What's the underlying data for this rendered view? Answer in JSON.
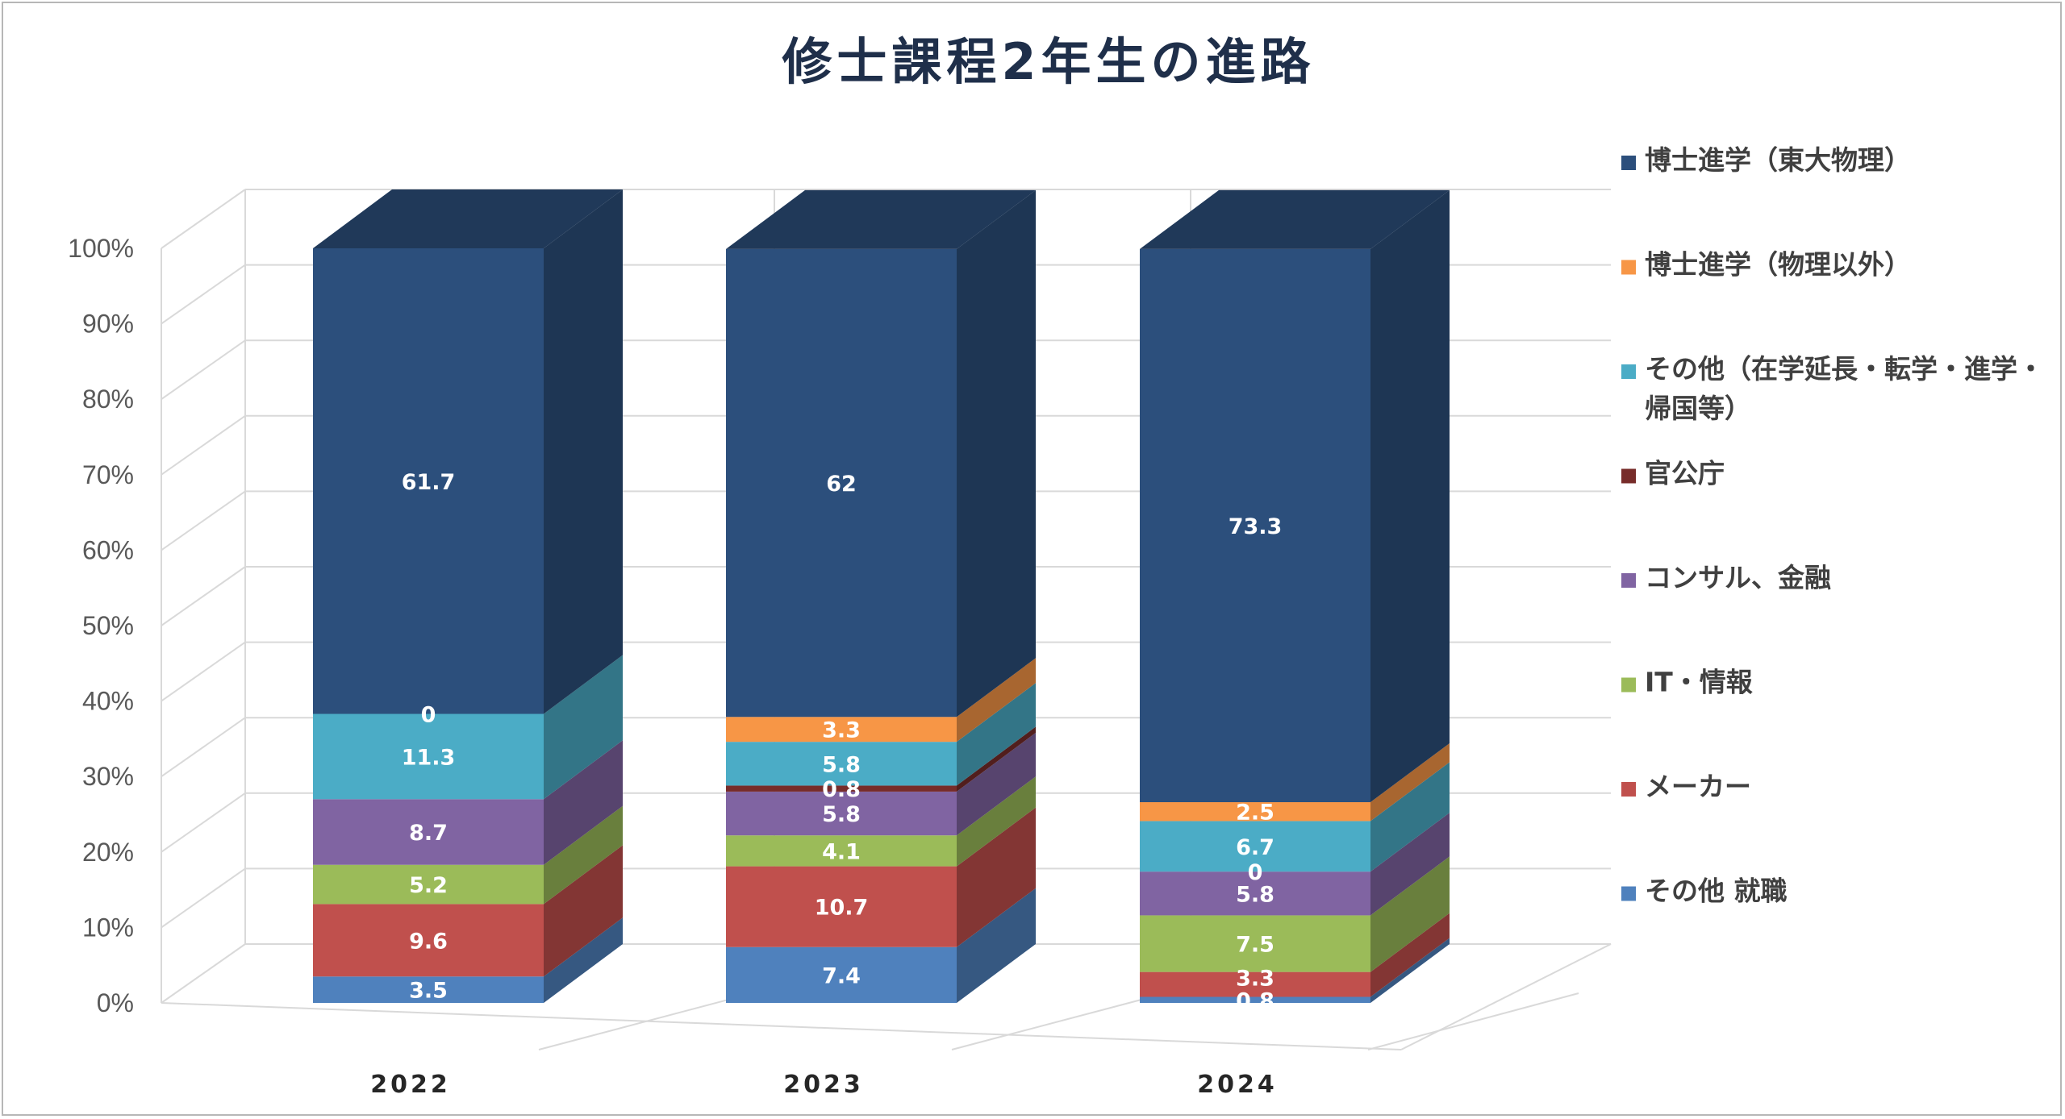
{
  "chart_data": {
    "type": "bar",
    "stacked": true,
    "three_d": true,
    "percent_axis": true,
    "title": "修士課程2年生の進路",
    "categories": [
      "2022",
      "2023",
      "2024"
    ],
    "yticks": [
      "0%",
      "10%",
      "20%",
      "30%",
      "40%",
      "50%",
      "60%",
      "70%",
      "80%",
      "90%",
      "100%"
    ],
    "ylim": [
      0,
      100
    ],
    "legend_position": "right",
    "grid": true,
    "series": [
      {
        "name": "その他 就職",
        "color": "#4f81bd",
        "values": [
          3.5,
          7.4,
          0.8
        ]
      },
      {
        "name": "メーカー",
        "color": "#c0504d",
        "values": [
          9.6,
          10.7,
          3.3
        ]
      },
      {
        "name": "IT・情報",
        "color": "#9bbb59",
        "values": [
          5.2,
          4.1,
          7.5
        ]
      },
      {
        "name": "コンサル、金融",
        "color": "#8064a2",
        "values": [
          8.7,
          5.8,
          5.8
        ]
      },
      {
        "name": "官公庁",
        "color": "#772c2a",
        "values": [
          null,
          0.8,
          0
        ]
      },
      {
        "name": "その他（在学延長・転学・進学・帰国等）",
        "color": "#4bacc6",
        "values": [
          11.3,
          5.8,
          6.7
        ]
      },
      {
        "name": "博士進学（物理以外）",
        "color": "#f79646",
        "values": [
          0,
          3.3,
          2.5
        ]
      },
      {
        "name": "博士進学（東大物理）",
        "color": "#2c4f7c",
        "values": [
          61.7,
          62,
          73.3
        ]
      }
    ],
    "legend_lines": [
      [
        "博士進学（東大物理）"
      ],
      [
        "博士進学（物理以外）"
      ],
      [
        "その他（在学延長・転学・進学・",
        "帰国等）"
      ],
      [
        "官公庁"
      ],
      [
        "コンサル、金融"
      ],
      [
        "IT・情報"
      ],
      [
        "メーカー"
      ],
      [
        "その他 就職"
      ]
    ]
  }
}
